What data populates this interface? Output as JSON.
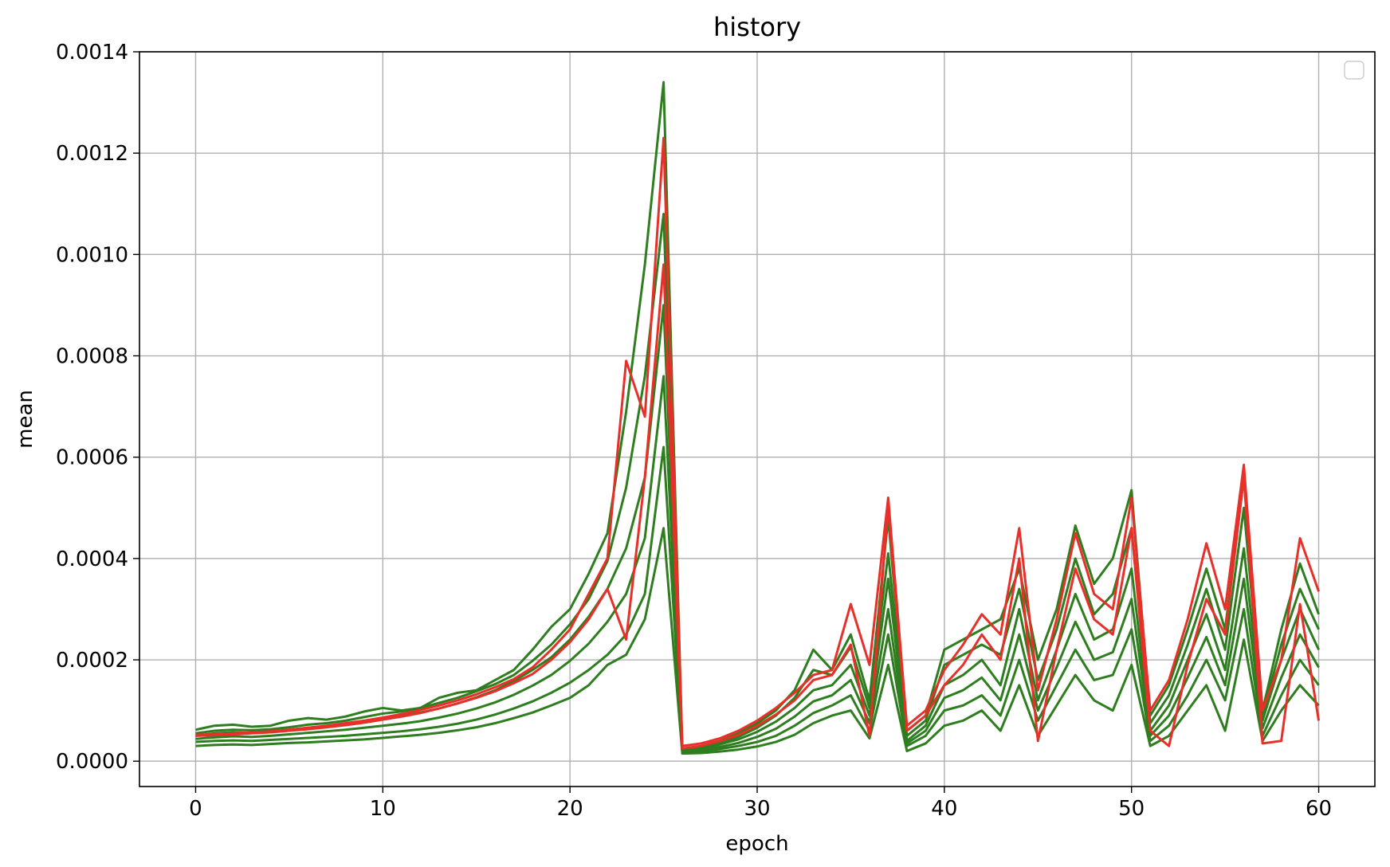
{
  "colors": {
    "primary_series": "#2e7d1f",
    "highlight_series": "#e8302a",
    "grid": "#b0b0b0"
  },
  "legend": {
    "placement": "top-right",
    "entries": []
  },
  "chart_data": {
    "type": "line",
    "title": "history",
    "xlabel": "epoch",
    "ylabel": "mean",
    "xlim": [
      -3,
      63
    ],
    "ylim": [
      -5e-05,
      0.0014
    ],
    "grid": true,
    "xticks": [
      0,
      10,
      20,
      30,
      40,
      50,
      60
    ],
    "xtick_labels": [
      "0",
      "10",
      "20",
      "30",
      "40",
      "50",
      "60"
    ],
    "yticks": [
      0,
      0.0002,
      0.0004,
      0.0006,
      0.0008,
      0.001,
      0.0012,
      0.0014
    ],
    "ytick_labels": [
      "0.0000",
      "0.0002",
      "0.0004",
      "0.0006",
      "0.0008",
      "0.0010",
      "0.0012",
      "0.0014"
    ],
    "x": [
      0,
      1,
      2,
      3,
      4,
      5,
      6,
      7,
      8,
      9,
      10,
      11,
      12,
      13,
      14,
      15,
      16,
      17,
      18,
      19,
      20,
      21,
      22,
      23,
      24,
      25,
      26,
      27,
      28,
      29,
      30,
      31,
      32,
      33,
      34,
      35,
      36,
      37,
      38,
      39,
      40,
      41,
      42,
      43,
      44,
      45,
      46,
      47,
      48,
      49,
      50,
      51,
      52,
      53,
      54,
      55,
      56,
      57,
      58,
      59,
      60
    ],
    "series": [
      {
        "color": "#2e7d1f",
        "values": [
          6.2e-05,
          7e-05,
          7.2e-05,
          6.8e-05,
          7e-05,
          8e-05,
          8.5e-05,
          8.2e-05,
          8.8e-05,
          9.8e-05,
          0.000105,
          0.0001,
          0.000105,
          0.000125,
          0.000135,
          0.00014,
          0.00016,
          0.00018,
          0.00022,
          0.000265,
          0.0003,
          0.00037,
          0.00045,
          0.00069,
          0.00098,
          0.00134,
          2.5e-05,
          3e-05,
          4e-05,
          5.5e-05,
          7.5e-05,
          0.0001,
          0.00014,
          0.00022,
          0.00018,
          0.00025,
          0.00012,
          0.00048,
          6e-05,
          9e-05,
          0.00022,
          0.00024,
          0.00026,
          0.00028,
          0.00038,
          0.0002,
          0.0003,
          0.000465,
          0.00035,
          0.0004,
          0.000535,
          9e-05,
          0.00015,
          0.00026,
          0.00038,
          0.00026,
          0.00056,
          0.0001,
          0.00026,
          0.00039,
          0.00029
        ]
      },
      {
        "color": "#2e7d1f",
        "values": [
          5e-05,
          5.5e-05,
          5.7e-05,
          5.6e-05,
          5.8e-05,
          6.2e-05,
          6.6e-05,
          6.9e-05,
          7.3e-05,
          7.8e-05,
          8.4e-05,
          8.9e-05,
          9.6e-05,
          0.000104,
          0.000114,
          0.000126,
          0.00014,
          0.000158,
          0.00018,
          0.000205,
          0.00024,
          0.000285,
          0.00034,
          0.00042,
          0.00056,
          0.0009,
          2.2e-05,
          2.6e-05,
          3.3e-05,
          4.3e-05,
          5.8e-05,
          7.8e-05,
          0.000105,
          0.00014,
          0.00015,
          0.00019,
          9e-05,
          0.00036,
          4e-05,
          7e-05,
          0.00015,
          0.00017,
          0.0002,
          0.00015,
          0.0003,
          0.00012,
          0.00022,
          0.00033,
          0.00024,
          0.00026,
          0.00038,
          6e-05,
          0.00011,
          0.0002,
          0.00029,
          0.00018,
          0.00042,
          8e-05,
          0.0002,
          0.0003,
          0.00022
        ]
      },
      {
        "color": "#2e7d1f",
        "values": [
          3.8e-05,
          4e-05,
          4.1e-05,
          4e-05,
          4.2e-05,
          4.4e-05,
          4.6e-05,
          4.8e-05,
          5e-05,
          5.3e-05,
          5.6e-05,
          5.9e-05,
          6.3e-05,
          6.8e-05,
          7.4e-05,
          8.2e-05,
          9.2e-05,
          0.000104,
          0.000118,
          0.000135,
          0.000155,
          0.00018,
          0.00021,
          0.00025,
          0.00033,
          0.00062,
          1.8e-05,
          2e-05,
          2.4e-05,
          3e-05,
          3.8e-05,
          5e-05,
          7e-05,
          9.5e-05,
          0.00011,
          0.00013,
          6e-05,
          0.00025,
          3e-05,
          5e-05,
          0.0001,
          0.00011,
          0.00013,
          9e-05,
          0.0002,
          8e-05,
          0.00015,
          0.00022,
          0.00016,
          0.00017,
          0.00026,
          4e-05,
          7e-05,
          0.00013,
          0.0002,
          0.00012,
          0.0003,
          5e-05,
          0.00013,
          0.0002,
          0.00015
        ]
      },
      {
        "color": "#2e7d1f",
        "values": [
          3e-05,
          3.2e-05,
          3.3e-05,
          3.2e-05,
          3.4e-05,
          3.6e-05,
          3.7e-05,
          3.9e-05,
          4.1e-05,
          4.3e-05,
          4.6e-05,
          4.9e-05,
          5.2e-05,
          5.6e-05,
          6.1e-05,
          6.7e-05,
          7.5e-05,
          8.5e-05,
          9.6e-05,
          0.00011,
          0.000125,
          0.00015,
          0.00019,
          0.00021,
          0.00028,
          0.00046,
          1.5e-05,
          1.6e-05,
          1.9e-05,
          2.3e-05,
          2.9e-05,
          3.8e-05,
          5.2e-05,
          7.5e-05,
          9e-05,
          0.0001,
          4.5e-05,
          0.00019,
          2e-05,
          3.5e-05,
          7e-05,
          8e-05,
          0.0001,
          6e-05,
          0.00015,
          5e-05,
          0.00011,
          0.00017,
          0.00012,
          0.0001,
          0.00019,
          3e-05,
          5e-05,
          0.0001,
          0.00015,
          6e-05,
          0.00024,
          4e-05,
          0.0001,
          0.00015,
          0.00011
        ]
      },
      {
        "color": "#2e7d1f",
        "values": [
          5.5e-05,
          6e-05,
          6.2e-05,
          6.1e-05,
          6.3e-05,
          6.7e-05,
          7.2e-05,
          7.5e-05,
          8e-05,
          8.7e-05,
          9.4e-05,
          9.8e-05,
          0.000105,
          0.000115,
          0.000125,
          0.000138,
          0.000152,
          0.00017,
          0.000198,
          0.00023,
          0.00027,
          0.00032,
          0.000395,
          0.00054,
          0.00076,
          0.00108,
          2.4e-05,
          2.8e-05,
          3.6e-05,
          4.8e-05,
          6.6e-05,
          9e-05,
          0.000125,
          0.00018,
          0.00017,
          0.000225,
          0.000105,
          0.00041,
          5e-05,
          8e-05,
          0.00019,
          0.00021,
          0.00023,
          0.00021,
          0.00034,
          0.00016,
          0.00026,
          0.0004,
          0.00029,
          0.00033,
          0.00046,
          7.5e-05,
          0.00013,
          0.00023,
          0.00034,
          0.00022,
          0.0005,
          9e-05,
          0.00023,
          0.00034,
          0.00026
        ]
      },
      {
        "color": "#2e7d1f",
        "values": [
          4.4e-05,
          4.7e-05,
          4.9e-05,
          4.8e-05,
          5e-05,
          5.3e-05,
          5.6e-05,
          5.9e-05,
          6.2e-05,
          6.6e-05,
          7e-05,
          7.4e-05,
          7.9e-05,
          8.6e-05,
          9.4e-05,
          0.000104,
          0.000116,
          0.000131,
          0.000149,
          0.00017,
          0.000198,
          0.000232,
          0.000275,
          0.00033,
          0.00044,
          0.00076,
          2e-05,
          2.3e-05,
          2.8e-05,
          3.6e-05,
          4.8e-05,
          6.4e-05,
          8.8e-05,
          0.000118,
          0.00013,
          0.00016,
          7.5e-05,
          0.0003,
          3.5e-05,
          6e-05,
          0.000125,
          0.00014,
          0.000165,
          0.00012,
          0.00025,
          0.0001,
          0.000185,
          0.000275,
          0.0002,
          0.000215,
          0.00032,
          5e-05,
          9e-05,
          0.000165,
          0.000245,
          0.00015,
          0.00036,
          6.5e-05,
          0.000165,
          0.00025,
          0.000185
        ]
      },
      {
        "color": "#e8302a",
        "values": [
          5.2e-05,
          5.3e-05,
          5.5e-05,
          5.7e-05,
          5.9e-05,
          6.2e-05,
          6.6e-05,
          7e-05,
          7.5e-05,
          8e-05,
          8.6e-05,
          9.3e-05,
          0.000101,
          0.00011,
          0.00012,
          0.000132,
          0.000146,
          0.000162,
          0.000185,
          0.00022,
          0.00026,
          0.00033,
          0.0004,
          0.00079,
          0.00068,
          0.00123,
          3e-05,
          3.5e-05,
          4.5e-05,
          6e-05,
          8e-05,
          0.000105,
          0.000135,
          0.00017,
          0.00018,
          0.00031,
          0.00019,
          0.00052,
          7e-05,
          0.0001,
          0.00018,
          0.00023,
          0.00029,
          0.00025,
          0.00046,
          0.00014,
          0.00028,
          0.00045,
          0.00033,
          0.0003,
          0.00052,
          0.0001,
          0.00016,
          0.00028,
          0.00043,
          0.0003,
          0.000585,
          0.0001,
          0.0002,
          0.00044,
          0.000335
        ]
      },
      {
        "color": "#e8302a",
        "values": [
          5e-05,
          5.1e-05,
          5.3e-05,
          5.5e-05,
          5.7e-05,
          6e-05,
          6.3e-05,
          6.7e-05,
          7.1e-05,
          7.6e-05,
          8.2e-05,
          8.8e-05,
          9.5e-05,
          0.000104,
          0.000114,
          0.000125,
          0.000138,
          0.000154,
          0.000172,
          0.0002,
          0.000235,
          0.00028,
          0.00034,
          0.00024,
          0.00056,
          0.00098,
          2.5e-05,
          3e-05,
          4e-05,
          5.2e-05,
          7e-05,
          9.2e-05,
          0.00012,
          0.00016,
          0.00017,
          0.00023,
          5e-05,
          0.0005,
          6e-05,
          9e-05,
          0.00015,
          0.00019,
          0.00025,
          0.0002,
          0.0004,
          4e-05,
          0.00022,
          0.00038,
          0.00028,
          0.00025,
          0.00046,
          6e-05,
          3e-05,
          0.00019,
          0.00032,
          0.00025,
          0.00056,
          3.5e-05,
          4e-05,
          0.00031,
          8e-05
        ]
      }
    ]
  }
}
